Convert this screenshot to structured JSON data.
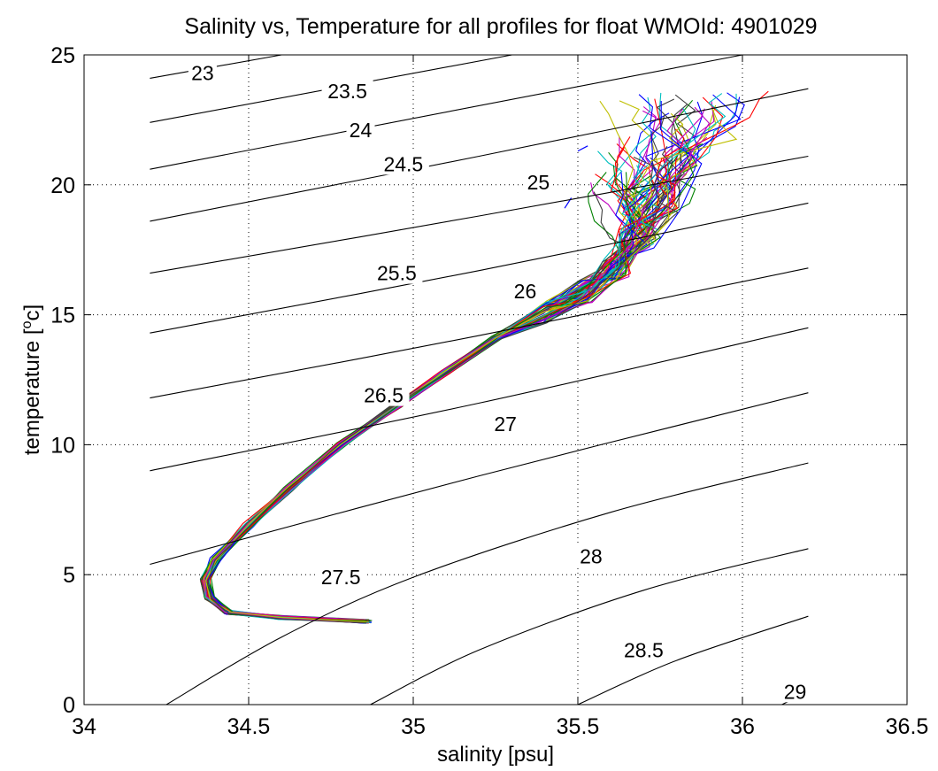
{
  "chart_data": {
    "type": "line",
    "title": "Salinity vs, Temperature for all profiles for float WMOId: 4901029",
    "xlabel": "salinity [psu]",
    "ylabel_prefix": "temperature [",
    "ylabel_super": "o",
    "ylabel_suffix": "c]",
    "xlim": [
      34,
      36.5
    ],
    "ylim": [
      0,
      25
    ],
    "xticks": [
      34,
      34.5,
      35,
      35.5,
      36,
      36.5
    ],
    "xtick_labels": [
      "34",
      "34.5",
      "35",
      "35.5",
      "36",
      "36.5"
    ],
    "yticks": [
      0,
      5,
      10,
      15,
      20,
      25
    ],
    "ytick_labels": [
      "0",
      "5",
      "10",
      "15",
      "20",
      "25"
    ],
    "grid": true,
    "density_contours": {
      "color": "#000000",
      "lines": [
        {
          "label": "23",
          "points": [
            [
              34.2,
              24.1
            ],
            [
              34.6,
              25.0
            ]
          ]
        },
        {
          "label": "23.5",
          "points": [
            [
              34.2,
              22.4
            ],
            [
              35.3,
              25.0
            ]
          ]
        },
        {
          "label": "24",
          "points": [
            [
              34.2,
              20.6
            ],
            [
              36.0,
              25.0
            ]
          ]
        },
        {
          "label": "24.5",
          "points": [
            [
              34.2,
              18.6
            ],
            [
              35.2,
              21.1
            ],
            [
              36.2,
              23.7
            ]
          ]
        },
        {
          "label": "25",
          "points": [
            [
              34.2,
              16.6
            ],
            [
              35.2,
              18.8
            ],
            [
              36.2,
              21.1
            ]
          ]
        },
        {
          "label": "25.5",
          "points": [
            [
              34.2,
              14.3
            ],
            [
              35.2,
              16.7
            ],
            [
              36.2,
              19.3
            ]
          ]
        },
        {
          "label": "26",
          "points": [
            [
              34.2,
              11.8
            ],
            [
              35.2,
              14.2
            ],
            [
              36.2,
              16.8
            ]
          ]
        },
        {
          "label": "26.5",
          "points": [
            [
              34.2,
              9.0
            ],
            [
              35.2,
              11.6
            ],
            [
              36.2,
              14.5
            ]
          ]
        },
        {
          "label": "27",
          "points": [
            [
              34.2,
              5.4
            ],
            [
              35.2,
              8.8
            ],
            [
              36.2,
              12.0
            ]
          ]
        },
        {
          "label": "27.5",
          "points": [
            [
              34.25,
              0.0
            ],
            [
              34.6,
              2.6
            ],
            [
              35.0,
              4.9
            ],
            [
              35.6,
              7.4
            ],
            [
              36.2,
              9.3
            ]
          ]
        },
        {
          "label": "28",
          "points": [
            [
              34.87,
              0.0
            ],
            [
              35.2,
              2.1
            ],
            [
              35.7,
              4.4
            ],
            [
              36.2,
              6.0
            ]
          ]
        },
        {
          "label": "28.5",
          "points": [
            [
              35.5,
              0.0
            ],
            [
              35.8,
              1.7
            ],
            [
              36.2,
              3.4
            ]
          ]
        },
        {
          "label": "29",
          "points": [
            [
              36.12,
              0.0
            ],
            [
              36.2,
              0.5
            ]
          ]
        }
      ],
      "label_positions": [
        {
          "label": "23",
          "x": 34.36,
          "y": 24.3
        },
        {
          "label": "23.5",
          "x": 34.8,
          "y": 23.6
        },
        {
          "label": "24",
          "x": 34.84,
          "y": 22.1
        },
        {
          "label": "24.5",
          "x": 34.97,
          "y": 20.8
        },
        {
          "label": "25",
          "x": 35.38,
          "y": 20.1
        },
        {
          "label": "25.5",
          "x": 34.95,
          "y": 16.6
        },
        {
          "label": "26",
          "x": 35.34,
          "y": 15.9
        },
        {
          "label": "26.5",
          "x": 34.91,
          "y": 11.9
        },
        {
          "label": "27",
          "x": 35.28,
          "y": 10.8
        },
        {
          "label": "27.5",
          "x": 34.78,
          "y": 4.9
        },
        {
          "label": "28",
          "x": 35.54,
          "y": 5.7
        },
        {
          "label": "28.5",
          "x": 35.7,
          "y": 2.1
        },
        {
          "label": "29",
          "x": 36.16,
          "y": 0.5
        }
      ]
    },
    "profile_colors": [
      "#0000ff",
      "#ff0000",
      "#008000",
      "#00bfbf",
      "#bf00bf",
      "#bfbf00",
      "#3f3f3f"
    ],
    "profile_count": 70,
    "mean_profile": [
      [
        34.86,
        3.2
      ],
      [
        34.6,
        3.35
      ],
      [
        34.44,
        3.55
      ],
      [
        34.38,
        4.1
      ],
      [
        34.37,
        4.8
      ],
      [
        34.4,
        5.6
      ],
      [
        34.5,
        6.9
      ],
      [
        34.62,
        8.3
      ],
      [
        34.78,
        10.0
      ],
      [
        34.95,
        11.5
      ],
      [
        35.1,
        12.8
      ],
      [
        35.25,
        14.1
      ],
      [
        35.4,
        15.1
      ],
      [
        35.52,
        15.9
      ],
      [
        35.62,
        16.8
      ],
      [
        35.68,
        18.0
      ],
      [
        35.72,
        19.3
      ],
      [
        35.78,
        20.8
      ],
      [
        35.85,
        22.2
      ]
    ],
    "series": [
      {
        "name": "",
        "color": "#0000ff",
        "points": [
          [
            35.5,
            21.3
          ],
          [
            35.53,
            21.5
          ]
        ]
      },
      {
        "name": "",
        "color": "#0000ff",
        "points": [
          [
            35.48,
            19.5
          ],
          [
            35.46,
            19.1
          ]
        ]
      }
    ]
  }
}
